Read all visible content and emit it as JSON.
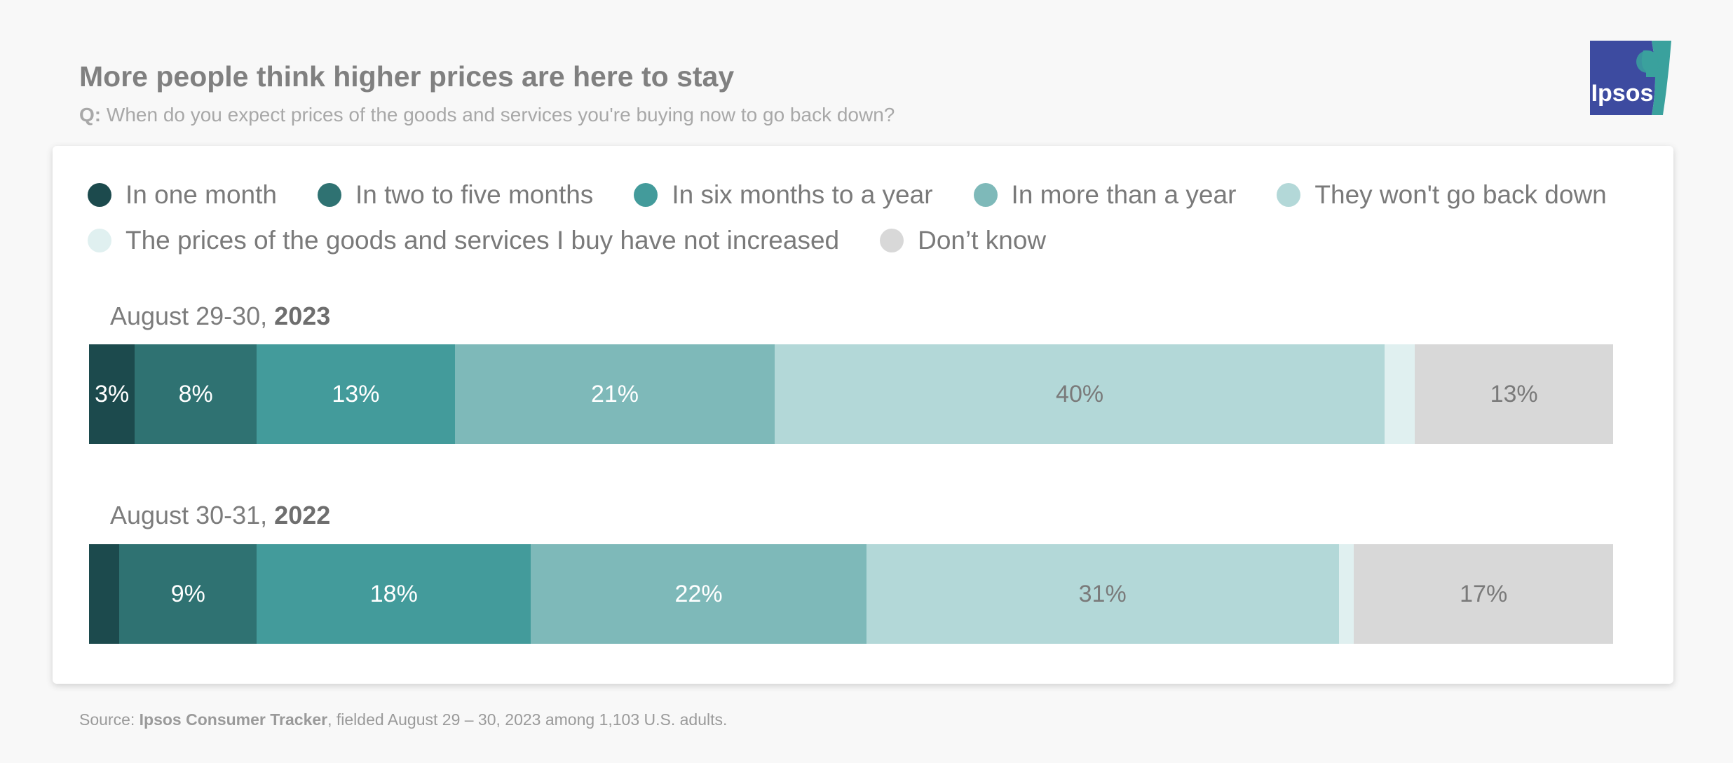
{
  "header": {
    "title": "More people think higher prices are here to stay",
    "subtitle_q": "Q:",
    "subtitle_text": " When do you expect prices of the goods and services you're buying now to go back down?"
  },
  "logo": {
    "text": "Ipsos",
    "colors": {
      "left": "#3d4ba0",
      "right": "#3aa19d"
    }
  },
  "source": {
    "prefix": "Source: ",
    "name": "Ipsos Consumer Tracker",
    "rest": ", fielded August 29 – 30, 2023 among 1,103 U.S. adults."
  },
  "chart_data": {
    "type": "bar",
    "stacked": true,
    "orientation": "horizontal",
    "unit": "%",
    "legend_placement": "top",
    "categories": [
      {
        "period": "August 29-30, ",
        "year": "2023"
      },
      {
        "period": "August 30-31, ",
        "year": "2022"
      }
    ],
    "series": [
      {
        "name": "In one month",
        "color": "#1c4a4d",
        "label_color": "#ffffff",
        "values": [
          3,
          2
        ],
        "labels": [
          "3%",
          ""
        ]
      },
      {
        "name": "In two to five months",
        "color": "#2f7272",
        "label_color": "#ffffff",
        "values": [
          8,
          9
        ],
        "labels": [
          "8%",
          "9%"
        ]
      },
      {
        "name": "In six months to a year",
        "color": "#439b9b",
        "label_color": "#ffffff",
        "values": [
          13,
          18
        ],
        "labels": [
          "13%",
          "18%"
        ]
      },
      {
        "name": "In more than a year",
        "color": "#7eb9b9",
        "label_color": "#ffffff",
        "values": [
          21,
          22
        ],
        "labels": [
          "21%",
          "22%"
        ]
      },
      {
        "name": "They won't go back down",
        "color": "#b3d8d8",
        "label_color": "#7a7a7a",
        "values": [
          40,
          31
        ],
        "labels": [
          "40%",
          "31%"
        ]
      },
      {
        "name": "The prices of the goods and services I buy have not increased",
        "color": "#e0f0f0",
        "label_color": "#7a7a7a",
        "values": [
          2,
          1
        ],
        "labels": [
          "",
          ""
        ]
      },
      {
        "name": "Don’t know",
        "color": "#d8d8d8",
        "label_color": "#7a7a7a",
        "values": [
          13,
          17
        ],
        "labels": [
          "13%",
          "17%"
        ]
      }
    ]
  }
}
